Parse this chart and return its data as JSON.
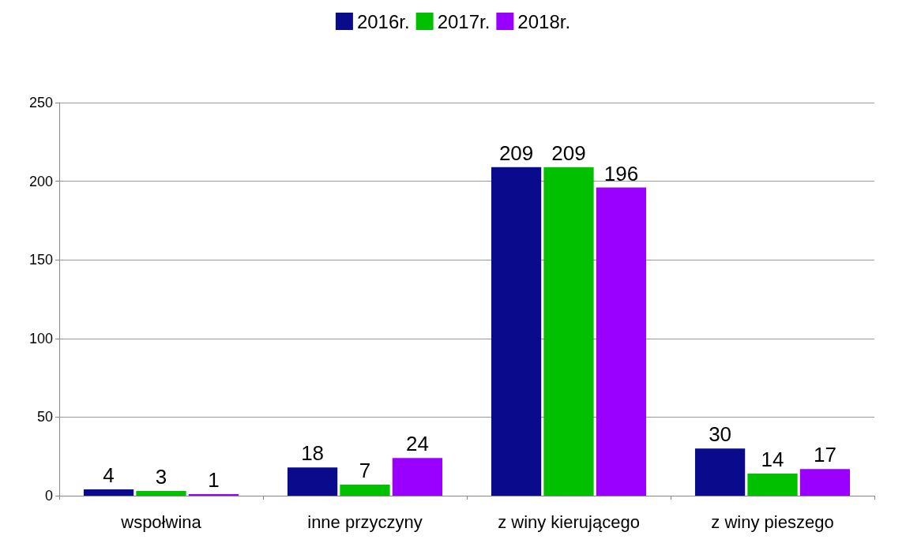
{
  "chart_data": {
    "type": "bar",
    "categories": [
      "wspołwina",
      "inne przyczyny",
      "z winy kierującego",
      "z winy pieszego"
    ],
    "series": [
      {
        "name": "2016r.",
        "color": "#0a0a8c",
        "values": [
          4,
          18,
          209,
          30
        ]
      },
      {
        "name": "2017r.",
        "color": "#00c000",
        "values": [
          3,
          7,
          209,
          14
        ]
      },
      {
        "name": "2018r.",
        "color": "#9900ff",
        "values": [
          1,
          24,
          196,
          17
        ]
      }
    ],
    "ylim": [
      0,
      250
    ],
    "yticks": [
      0,
      50,
      100,
      150,
      200,
      250
    ],
    "grid": "y",
    "legend": "top",
    "data_labels": true
  }
}
